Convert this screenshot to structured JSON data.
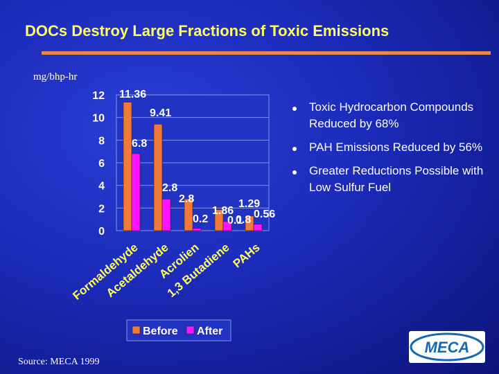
{
  "title": "DOCs Destroy Large Fractions of  Toxic Emissions",
  "unit_label": "mg/bhp-hr",
  "bullets": [
    "Toxic Hydrocarbon Compounds Reduced by 68%",
    "PAH Emissions Reduced by 56%",
    "Greater Reductions Possible with Low Sulfur Fuel"
  ],
  "source": "Source: MECA 1999",
  "logo_text": "MECA",
  "colors": {
    "before": "#f07a3a",
    "after": "#ff14ff",
    "title": "#ffff66",
    "accent_rule": "#e8894a",
    "logo": "#1668b4"
  },
  "chart_data": {
    "type": "bar",
    "categories": [
      "Formaldehyde",
      "Acetaldehyde",
      "Acrolien",
      "1,3 Butadiene",
      "PAHs"
    ],
    "series": [
      {
        "name": "Before",
        "values": [
          11.36,
          9.41,
          2.8,
          1.86,
          1.29
        ],
        "labels": [
          "11.36",
          "9.41",
          "2.8",
          "1.86",
          "1.29"
        ]
      },
      {
        "name": "After",
        "values": [
          6.8,
          2.8,
          0.2,
          0.8,
          0.56
        ],
        "labels": [
          "6.8",
          "2.8",
          "0.2",
          "0.8",
          "0.56"
        ]
      }
    ],
    "extra_labels": [
      "0.1"
    ],
    "ylim": [
      0,
      12
    ],
    "yticks": [
      "0",
      "2",
      "4",
      "6",
      "8",
      "10",
      "12"
    ],
    "grid": true,
    "legend": "bottom"
  }
}
